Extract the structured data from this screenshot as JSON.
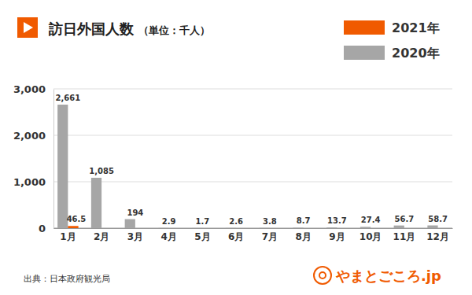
{
  "chart_data": {
    "type": "bar",
    "title": "訪日外国人数",
    "subtitle": "（単位：千人）",
    "categories": [
      "1月",
      "2月",
      "3月",
      "4月",
      "5月",
      "6月",
      "7月",
      "8月",
      "9月",
      "10月",
      "11月",
      "12月"
    ],
    "series": [
      {
        "name": "2021年",
        "color": "#f05a00",
        "values": [
          46.5,
          null,
          null,
          null,
          null,
          null,
          null,
          null,
          null,
          null,
          null,
          null
        ]
      },
      {
        "name": "2020年",
        "color": "#a6a6a6",
        "values": [
          2661,
          1085,
          194,
          2.9,
          1.7,
          2.6,
          3.8,
          8.7,
          13.7,
          27.4,
          56.7,
          58.7
        ],
        "value_labels": [
          "2,661",
          "1,085",
          "194",
          "2.9",
          "1.7",
          "2.6",
          "3.8",
          "8.7",
          "13.7",
          "27.4",
          "56.7",
          "58.7"
        ]
      }
    ],
    "ylim": [
      0,
      3000
    ],
    "yticks": [
      0,
      {
        "value": 1000,
        "label": "1,000"
      },
      {
        "value": 2000,
        "label": "2,000"
      },
      {
        "value": 3000,
        "label": "3,000"
      }
    ],
    "grid": true,
    "legend": "top-right",
    "data_labels": true,
    "annotations": [
      "出典：日本政府観光局",
      "やまとごころ.jp"
    ]
  }
}
